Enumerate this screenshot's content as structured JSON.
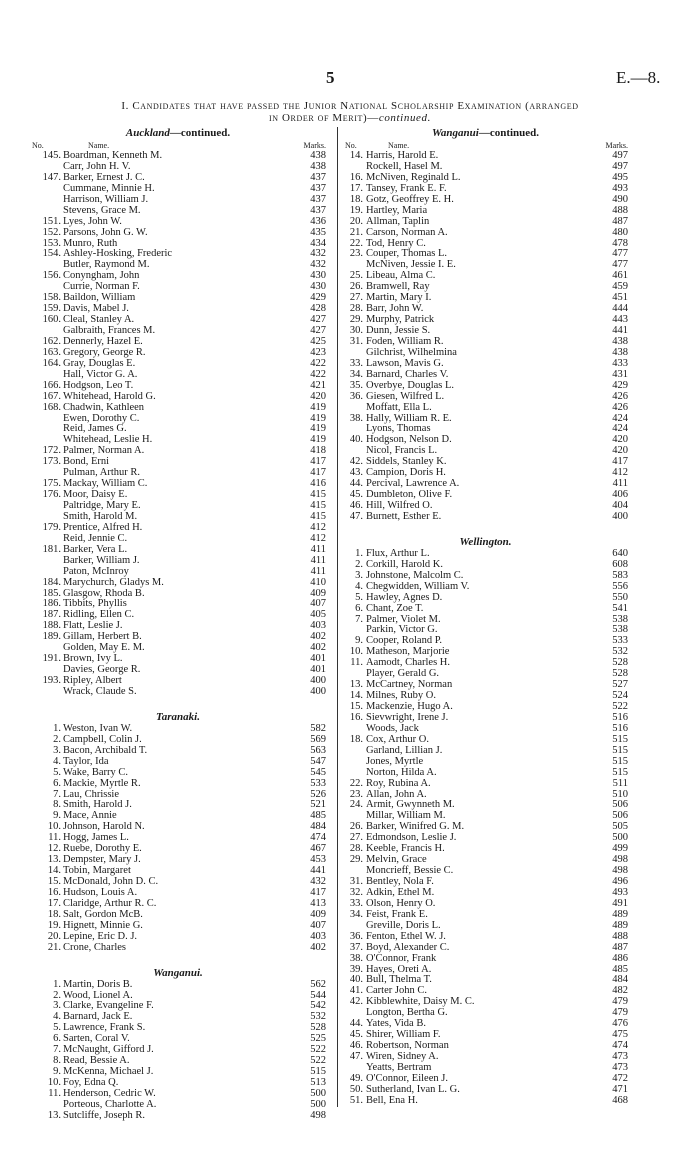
{
  "page_number": "5",
  "reference": "E.—8.",
  "title": {
    "line1": "I. Candidates that have passed the Junior National Scholarship Examination (arranged",
    "line2_main": "in Order of Merit)—",
    "line2_italic": "continued."
  },
  "column_headers": {
    "no": "No.",
    "name": "Name.",
    "marks": "Marks."
  },
  "left_sections": [
    {
      "region": "Auckland",
      "suffix": "—continued.",
      "rows": [
        [
          "145.",
          "Boardman, Kenneth M.",
          "438"
        ],
        [
          "",
          "Carr, John H. V.",
          "438"
        ],
        [
          "147.",
          "Barker, Ernest J. C.",
          "437"
        ],
        [
          "",
          "Cummane, Minnie H.",
          "437"
        ],
        [
          "",
          "Harrison, William J.",
          "437"
        ],
        [
          "",
          "Stevens, Grace M.",
          "437"
        ],
        [
          "151.",
          "Lyes, John W.",
          "436"
        ],
        [
          "152.",
          "Parsons, John G. W.",
          "435"
        ],
        [
          "153.",
          "Munro, Ruth",
          "434"
        ],
        [
          "154.",
          "Ashley-Hosking, Frederic",
          "432"
        ],
        [
          "",
          "Butler, Raymond M.",
          "432"
        ],
        [
          "156.",
          "Conyngham, John",
          "430"
        ],
        [
          "",
          "Currie, Norman F.",
          "430"
        ],
        [
          "158.",
          "Baildon, William",
          "429"
        ],
        [
          "159.",
          "Davis, Mabel J.",
          "428"
        ],
        [
          "160.",
          "Cleal, Stanley A.",
          "427"
        ],
        [
          "",
          "Galbraith, Frances M.",
          "427"
        ],
        [
          "162.",
          "Dennerly, Hazel E.",
          "425"
        ],
        [
          "163.",
          "Gregory, George R.",
          "423"
        ],
        [
          "164.",
          "Gray, Douglas E.",
          "422"
        ],
        [
          "",
          "Hall, Victor G. A.",
          "422"
        ],
        [
          "166.",
          "Hodgson, Leo T.",
          "421"
        ],
        [
          "167.",
          "Whitehead, Harold G.",
          "420"
        ],
        [
          "168.",
          "Chadwin, Kathleen",
          "419"
        ],
        [
          "",
          "Ewen, Dorothy C.",
          "419"
        ],
        [
          "",
          "Reid, James G.",
          "419"
        ],
        [
          "",
          "Whitehead, Leslie H.",
          "419"
        ],
        [
          "172.",
          "Palmer, Norman A.",
          "418"
        ],
        [
          "173.",
          "Bond, Erni",
          "417"
        ],
        [
          "",
          "Pulman, Arthur R.",
          "417"
        ],
        [
          "175.",
          "Mackay, William C.",
          "416"
        ],
        [
          "176.",
          "Moor, Daisy E.",
          "415"
        ],
        [
          "",
          "Paltridge, Mary E.",
          "415"
        ],
        [
          "",
          "Smith, Harold M.",
          "415"
        ],
        [
          "179.",
          "Prentice, Alfred H.",
          "412"
        ],
        [
          "",
          "Reid, Jennie C.",
          "412"
        ],
        [
          "181.",
          "Barker, Vera L.",
          "411"
        ],
        [
          "",
          "Barker, William J.",
          "411"
        ],
        [
          "",
          "Paton, McInroy",
          "411"
        ],
        [
          "184.",
          "Marychurch, Gladys M.",
          "410"
        ],
        [
          "185.",
          "Glasgow, Rhoda B.",
          "409"
        ],
        [
          "186.",
          "Tibbits, Phyllis",
          "407"
        ],
        [
          "187.",
          "Ridling, Ellen C.",
          "405"
        ],
        [
          "188.",
          "Flatt, Leslie J.",
          "403"
        ],
        [
          "189.",
          "Gillam, Herbert B.",
          "402"
        ],
        [
          "",
          "Golden, May E. M.",
          "402"
        ],
        [
          "191.",
          "Brown, Ivy L.",
          "401"
        ],
        [
          "",
          "Davies, George R.",
          "401"
        ],
        [
          "193.",
          "Ripley, Albert",
          "400"
        ],
        [
          "",
          "Wrack, Claude S.",
          "400"
        ]
      ]
    },
    {
      "region": "Taranaki.",
      "suffix": "",
      "rows": [
        [
          "1.",
          "Weston, Ivan W.",
          "582"
        ],
        [
          "2.",
          "Campbell, Colin J.",
          "569"
        ],
        [
          "3.",
          "Bacon, Archibald T.",
          "563"
        ],
        [
          "4.",
          "Taylor, Ida",
          "547"
        ],
        [
          "5.",
          "Wake, Barry C.",
          "545"
        ],
        [
          "6.",
          "Mackie, Myrtle R.",
          "533"
        ],
        [
          "7.",
          "Lau, Chrissie",
          "526"
        ],
        [
          "8.",
          "Smith, Harold J.",
          "521"
        ],
        [
          "9.",
          "Mace, Annie",
          "485"
        ],
        [
          "10.",
          "Johnson, Harold N.",
          "484"
        ],
        [
          "11.",
          "Hogg, James L.",
          "474"
        ],
        [
          "12.",
          "Ruebe, Dorothy E.",
          "467"
        ],
        [
          "13.",
          "Dempster, Mary J.",
          "453"
        ],
        [
          "14.",
          "Tobin, Margaret",
          "441"
        ],
        [
          "15.",
          "McDonald, John D. C.",
          "432"
        ],
        [
          "16.",
          "Hudson, Louis A.",
          "417"
        ],
        [
          "17.",
          "Claridge, Arthur R. C.",
          "413"
        ],
        [
          "18.",
          "Salt, Gordon McB.",
          "409"
        ],
        [
          "19.",
          "Hignett, Minnie G.",
          "407"
        ],
        [
          "20.",
          "Lepine, Eric D. J.",
          "403"
        ],
        [
          "21.",
          "Crone, Charles",
          "402"
        ]
      ]
    },
    {
      "region": "Wanganui.",
      "suffix": "",
      "rows": [
        [
          "1.",
          "Martin, Doris B.",
          "562"
        ],
        [
          "2.",
          "Wood, Lionel A.",
          "544"
        ],
        [
          "3.",
          "Clarke, Evangeline F.",
          "542"
        ],
        [
          "4.",
          "Barnard, Jack E.",
          "532"
        ],
        [
          "5.",
          "Lawrence, Frank S.",
          "528"
        ],
        [
          "6.",
          "Sarten, Coral V.",
          "525"
        ],
        [
          "7.",
          "McNaught, Gifford J.",
          "522"
        ],
        [
          "8.",
          "Read, Bessie A.",
          "522"
        ],
        [
          "9.",
          "McKenna, Michael J.",
          "515"
        ],
        [
          "10.",
          "Foy, Edna Q.",
          "513"
        ],
        [
          "11.",
          "Henderson, Cedric W.",
          "500"
        ],
        [
          "",
          "Porteous, Charlotte A.",
          "500"
        ],
        [
          "13.",
          "Sutcliffe, Joseph R.",
          "498"
        ]
      ]
    }
  ],
  "right_sections": [
    {
      "region": "Wanganui",
      "suffix": "—continued.",
      "rows": [
        [
          "14.",
          "Harris, Harold E.",
          "497"
        ],
        [
          "",
          "Rockell, Hasel M.",
          "497"
        ],
        [
          "16.",
          "McNiven, Reginald L.",
          "495"
        ],
        [
          "17.",
          "Tansey, Frank E. F.",
          "493"
        ],
        [
          "18.",
          "Gotz, Geoffrey E. H.",
          "490"
        ],
        [
          "19.",
          "Hartley, Maria",
          "488"
        ],
        [
          "20.",
          "Allman, Taplin",
          "487"
        ],
        [
          "21.",
          "Carson, Norman A.",
          "480"
        ],
        [
          "22.",
          "Tod, Henry C.",
          "478"
        ],
        [
          "23.",
          "Couper, Thomas L.",
          "477"
        ],
        [
          "",
          "McNiven, Jessie I. E.",
          "477"
        ],
        [
          "25.",
          "Libeau, Alma C.",
          "461"
        ],
        [
          "26.",
          "Bramwell, Ray",
          "459"
        ],
        [
          "27.",
          "Martin, Mary I.",
          "451"
        ],
        [
          "28.",
          "Barr, John W.",
          "444"
        ],
        [
          "29.",
          "Murphy, Patrick",
          "443"
        ],
        [
          "30.",
          "Dunn, Jessie S.",
          "441"
        ],
        [
          "31.",
          "Foden, William R.",
          "438"
        ],
        [
          "",
          "Gilchrist, Wilhelmina",
          "438"
        ],
        [
          "33.",
          "Lawson, Mavis G.",
          "433"
        ],
        [
          "34.",
          "Barnard, Charles V.",
          "431"
        ],
        [
          "35.",
          "Overbye, Douglas L.",
          "429"
        ],
        [
          "36.",
          "Giesen, Wilfred L.",
          "426"
        ],
        [
          "",
          "Moffatt, Ella L.",
          "426"
        ],
        [
          "38.",
          "Hally, William R. E.",
          "424"
        ],
        [
          "",
          "Lyons, Thomas",
          "424"
        ],
        [
          "40.",
          "Hodgson, Nelson D.",
          "420"
        ],
        [
          "",
          "Nicol, Francis L.",
          "420"
        ],
        [
          "42.",
          "Siddels, Stanley K.",
          "417"
        ],
        [
          "43.",
          "Campion, Doris H.",
          "412"
        ],
        [
          "44.",
          "Percival, Lawrence A.",
          "411"
        ],
        [
          "45.",
          "Dumbleton, Olive F.",
          "406"
        ],
        [
          "46.",
          "Hill, Wilfred O.",
          "404"
        ],
        [
          "47.",
          "Burnett, Esther E.",
          "400"
        ]
      ]
    },
    {
      "region": "Wellington.",
      "suffix": "",
      "rows": [
        [
          "1.",
          "Flux, Arthur L.",
          "640"
        ],
        [
          "2.",
          "Corkill, Harold K.",
          "608"
        ],
        [
          "3.",
          "Johnstone, Malcolm C.",
          "583"
        ],
        [
          "4.",
          "Chegwidden, William V.",
          "556"
        ],
        [
          "5.",
          "Hawley, Agnes D.",
          "550"
        ],
        [
          "6.",
          "Chant, Zoe T.",
          "541"
        ],
        [
          "7.",
          "Palmer, Violet M.",
          "538"
        ],
        [
          "",
          "Parkin, Victor G.",
          "538"
        ],
        [
          "9.",
          "Cooper, Roland P.",
          "533"
        ],
        [
          "10.",
          "Matheson, Marjorie",
          "532"
        ],
        [
          "11.",
          "Aamodt, Charles H.",
          "528"
        ],
        [
          "",
          "Player, Gerald G.",
          "528"
        ],
        [
          "13.",
          "McCartney, Norman",
          "527"
        ],
        [
          "14.",
          "Milnes, Ruby O.",
          "524"
        ],
        [
          "15.",
          "Mackenzie, Hugo A.",
          "522"
        ],
        [
          "16.",
          "Sievwright, Irene J.",
          "516"
        ],
        [
          "",
          "Woods, Jack",
          "516"
        ],
        [
          "18.",
          "Cox, Arthur O.",
          "515"
        ],
        [
          "",
          "Garland, Lillian J.",
          "515"
        ],
        [
          "",
          "Jones, Myrtle",
          "515"
        ],
        [
          "",
          "Norton, Hilda A.",
          "515"
        ],
        [
          "22.",
          "Roy, Rubina A.",
          "511"
        ],
        [
          "23.",
          "Allan, John A.",
          "510"
        ],
        [
          "24.",
          "Armit, Gwynneth M.",
          "506"
        ],
        [
          "",
          "Millar, William M.",
          "506"
        ],
        [
          "26.",
          "Barker, Winifred G. M.",
          "505"
        ],
        [
          "27.",
          "Edmondson, Leslie J.",
          "500"
        ],
        [
          "28.",
          "Keeble, Francis H.",
          "499"
        ],
        [
          "29.",
          "Melvin, Grace",
          "498"
        ],
        [
          "",
          "Moncrieff, Bessie C.",
          "498"
        ],
        [
          "31.",
          "Bentley, Nola F.",
          "496"
        ],
        [
          "32.",
          "Adkin, Ethel M.",
          "493"
        ],
        [
          "33.",
          "Olson, Henry O.",
          "491"
        ],
        [
          "34.",
          "Feist, Frank E.",
          "489"
        ],
        [
          "",
          "Greville, Doris L.",
          "489"
        ],
        [
          "36.",
          "Fenton, Ethel W. J.",
          "488"
        ],
        [
          "37.",
          "Boyd, Alexander C.",
          "487"
        ],
        [
          "38.",
          "O'Connor, Frank",
          "486"
        ],
        [
          "39.",
          "Hayes, Oreti A.",
          "485"
        ],
        [
          "40.",
          "Bull, Thelma T.",
          "484"
        ],
        [
          "41.",
          "Carter John C.",
          "482"
        ],
        [
          "42.",
          "Kibblewhite, Daisy M. C.",
          "479"
        ],
        [
          "",
          "Longton, Bertha G.",
          "479"
        ],
        [
          "44.",
          "Yates, Vida B.",
          "476"
        ],
        [
          "45.",
          "Shirer, William F.",
          "475"
        ],
        [
          "46.",
          "Robertson, Norman",
          "474"
        ],
        [
          "47.",
          "Wiren, Sidney A.",
          "473"
        ],
        [
          "",
          "Yeatts, Bertram",
          "473"
        ],
        [
          "49.",
          "O'Connor, Eileen J.",
          "472"
        ],
        [
          "50.",
          "Sutherland, Ivan L. G.",
          "471"
        ],
        [
          "51.",
          "Bell, Ena H.",
          "468"
        ]
      ]
    }
  ]
}
